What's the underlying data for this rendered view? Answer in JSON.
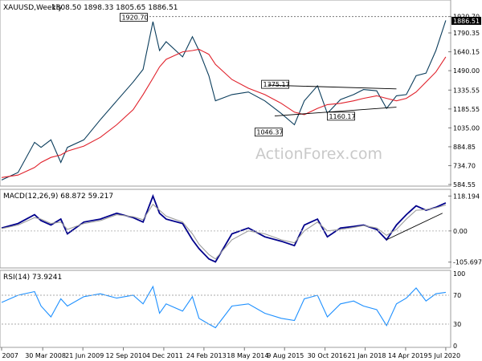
{
  "chart_data": [
    {
      "type": "line",
      "panel": "price",
      "title": "XAUUSD,Weekly",
      "ohlc": "1808.50 1898.33 1805.65 1886.51",
      "last_price": "1886.51",
      "level_label": "1920.70",
      "y_ticks": [
        "1920.70",
        "1790.35",
        "1640.15",
        "1490.00",
        "1335.55",
        "1185.55",
        "1035.00",
        "884.85",
        "734.70",
        "584.55"
      ],
      "x_ticks": [
        "7 Jan 2007",
        "30 Mar 2008",
        "21 Jun 2009",
        "12 Sep 2010",
        "4 Dec 2011",
        "24 Feb 2013",
        "18 May 2014",
        "9 Aug 2015",
        "30 Oct 2016",
        "21 Jan 2018",
        "14 Apr 2019",
        "5 Jul 2020"
      ],
      "annotations": [
        "1920.70",
        "1375.17",
        "1046.37",
        "1160.17"
      ],
      "watermark": "ActionForex.com",
      "x": [
        2007.0,
        2007.5,
        2008.0,
        2008.2,
        2008.5,
        2008.8,
        2009.0,
        2009.5,
        2010.0,
        2010.5,
        2011.0,
        2011.3,
        2011.6,
        2011.8,
        2012.0,
        2012.5,
        2012.8,
        2013.0,
        2013.3,
        2013.5,
        2014.0,
        2014.5,
        2015.0,
        2015.5,
        2015.9,
        2016.2,
        2016.6,
        2016.9,
        2017.3,
        2017.7,
        2018.0,
        2018.4,
        2018.7,
        2019.0,
        2019.3,
        2019.6,
        2019.9,
        2020.2,
        2020.5
      ],
      "series": [
        {
          "name": "",
          "color": "#0b3d5c",
          "values": [
            620,
            680,
            920,
            880,
            940,
            760,
            880,
            940,
            1100,
            1250,
            1400,
            1500,
            1880,
            1650,
            1720,
            1600,
            1760,
            1650,
            1450,
            1250,
            1300,
            1320,
            1250,
            1150,
            1060,
            1250,
            1370,
            1150,
            1260,
            1300,
            1340,
            1330,
            1190,
            1290,
            1300,
            1450,
            1470,
            1650,
            1890
          ]
        },
        {
          "name": "",
          "color": "#e0202a",
          "values": [
            640,
            660,
            720,
            760,
            800,
            820,
            850,
            890,
            960,
            1060,
            1180,
            1300,
            1430,
            1520,
            1580,
            1640,
            1650,
            1660,
            1620,
            1540,
            1420,
            1350,
            1300,
            1230,
            1160,
            1140,
            1190,
            1220,
            1230,
            1250,
            1270,
            1290,
            1270,
            1250,
            1270,
            1320,
            1400,
            1480,
            1600
          ]
        }
      ],
      "ylim": [
        584.55,
        1950
      ]
    },
    {
      "type": "line",
      "panel": "macd",
      "title": "MACD(12,26,9) 68.872 59.217",
      "y_ticks": [
        "118.194",
        "0.00",
        "-105.697"
      ],
      "x": [
        2007.0,
        2007.5,
        2008.0,
        2008.2,
        2008.5,
        2008.8,
        2009.0,
        2009.5,
        2010.0,
        2010.5,
        2011.0,
        2011.3,
        2011.6,
        2011.8,
        2012.0,
        2012.5,
        2012.8,
        2013.0,
        2013.3,
        2013.5,
        2014.0,
        2014.5,
        2015.0,
        2015.5,
        2015.9,
        2016.2,
        2016.6,
        2016.9,
        2017.3,
        2017.7,
        2018.0,
        2018.4,
        2018.7,
        2019.0,
        2019.3,
        2019.6,
        2019.9,
        2020.2,
        2020.5
      ],
      "series": [
        {
          "name": "",
          "color": "#00008b",
          "values": [
            10,
            25,
            55,
            35,
            20,
            40,
            -10,
            30,
            40,
            60,
            45,
            30,
            118,
            60,
            40,
            25,
            -30,
            -60,
            -95,
            -105,
            -10,
            10,
            -20,
            -35,
            -50,
            20,
            40,
            -20,
            10,
            15,
            20,
            5,
            -30,
            20,
            55,
            85,
            70,
            80,
            95
          ]
        },
        {
          "name": "",
          "color": "#9a9a9a",
          "values": [
            8,
            20,
            45,
            40,
            25,
            30,
            5,
            25,
            35,
            55,
            48,
            38,
            90,
            70,
            50,
            30,
            -10,
            -45,
            -80,
            -95,
            -30,
            0,
            -10,
            -30,
            -40,
            0,
            30,
            0,
            5,
            12,
            18,
            10,
            -15,
            5,
            40,
            70,
            72,
            78,
            88
          ]
        }
      ],
      "ylim": [
        -120,
        130
      ]
    },
    {
      "type": "line",
      "panel": "rsi",
      "title": "RSI(14) 73.9241",
      "y_ticks": [
        "100",
        "70",
        "30",
        "0"
      ],
      "x": [
        2007.0,
        2007.5,
        2008.0,
        2008.2,
        2008.5,
        2008.8,
        2009.0,
        2009.5,
        2010.0,
        2010.5,
        2011.0,
        2011.3,
        2011.6,
        2011.8,
        2012.0,
        2012.5,
        2012.8,
        2013.0,
        2013.3,
        2013.5,
        2014.0,
        2014.5,
        2015.0,
        2015.5,
        2015.9,
        2016.2,
        2016.6,
        2016.9,
        2017.3,
        2017.7,
        2018.0,
        2018.4,
        2018.7,
        2019.0,
        2019.3,
        2019.6,
        2019.9,
        2020.2,
        2020.5
      ],
      "series": [
        {
          "name": "",
          "color": "#1e90ff",
          "values": [
            60,
            70,
            75,
            55,
            40,
            65,
            55,
            68,
            72,
            66,
            70,
            58,
            82,
            45,
            58,
            48,
            68,
            38,
            30,
            25,
            55,
            58,
            45,
            38,
            35,
            65,
            70,
            40,
            58,
            62,
            55,
            50,
            28,
            58,
            66,
            80,
            62,
            72,
            74
          ]
        }
      ],
      "ylim": [
        0,
        100
      ]
    }
  ]
}
